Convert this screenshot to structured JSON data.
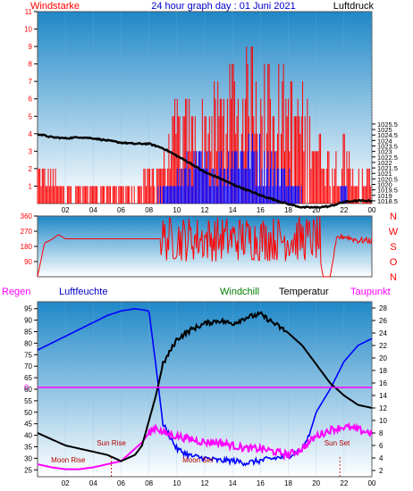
{
  "colors": {
    "wind_speed": "#ff0000",
    "wind_gust": "#0000ff",
    "pressure": "#000000",
    "wind_dir": "#ff0000",
    "humidity": "#0000ff",
    "temperature": "#000000",
    "dewpoint": "#ff00ff",
    "windchill": "#008000",
    "rain": "#ff00ff",
    "annotation": "#b00000",
    "bg_top": "#1f88c8",
    "bg_bottom": "#ffffff"
  },
  "chart_data": [
    {
      "type": "line",
      "title": "24 hour graph day : 01 Juni 2021",
      "left_label": "Windstarke",
      "right_label": "Luftdruck",
      "x_ticks": [
        "02",
        "04",
        "06",
        "08",
        "10",
        "12",
        "14",
        "16",
        "18",
        "20",
        "22",
        "00"
      ],
      "xlim": [
        0,
        24
      ],
      "ylim_left": [
        0,
        11
      ],
      "y_ticks_left": [
        "1",
        "2",
        "3",
        "4",
        "5",
        "6",
        "7",
        "8",
        "9",
        "10",
        "11"
      ],
      "ylim_right": [
        1018.25,
        1035.75
      ],
      "y_ticks_right": [
        "1018.5",
        "1019",
        "1019.5",
        "1020",
        "1020.5",
        "1021",
        "1021.5",
        "1022",
        "1022.5",
        "1023",
        "1023.5",
        "1024",
        "1024.5",
        "1025",
        "1025.5"
      ],
      "pressure_series": {
        "name": "Luftdruck",
        "x": [
          0,
          1,
          2,
          3,
          4,
          5,
          6,
          7,
          8,
          9,
          10,
          11,
          12,
          13,
          14,
          15,
          16,
          17,
          18,
          19,
          20,
          21,
          22,
          23,
          24
        ],
        "y": [
          1024.6,
          1024.3,
          1024.2,
          1024.3,
          1024.2,
          1024.0,
          1023.8,
          1023.7,
          1023.7,
          1023.3,
          1022.6,
          1021.9,
          1021.1,
          1020.6,
          1020.0,
          1019.5,
          1019.0,
          1018.6,
          1018.2,
          1017.9,
          1017.9,
          1018.0,
          1018.4,
          1018.5,
          1018.5
        ]
      },
      "wind_speed_envelope": {
        "name": "Windstarke",
        "x": [
          0,
          1,
          2,
          3,
          4,
          5,
          6,
          7,
          7.5,
          8,
          9,
          10,
          11,
          12,
          13,
          14,
          15,
          16,
          17,
          18,
          19,
          20,
          21,
          22,
          23,
          24
        ],
        "y": [
          2,
          2,
          1,
          1,
          1,
          1,
          1,
          1,
          2,
          2,
          3,
          6,
          6,
          6,
          7,
          9,
          9,
          11,
          9,
          8,
          7,
          5,
          3,
          4,
          2,
          2
        ]
      },
      "wind_gust_envelope": {
        "x": [
          0,
          8,
          9,
          10,
          11,
          12,
          13,
          14,
          15,
          16,
          17,
          18,
          19,
          20,
          21,
          22,
          23,
          24
        ],
        "y": [
          0,
          0,
          1,
          2,
          3,
          3,
          3,
          4,
          4,
          4,
          3,
          2,
          1,
          0,
          0,
          1,
          0,
          0
        ]
      }
    },
    {
      "type": "line",
      "title": "",
      "y_ticks_left": [
        "90",
        "180",
        "270",
        "360"
      ],
      "ylim": [
        0,
        360
      ],
      "right_letters": [
        "N",
        "W",
        "S",
        "O",
        "N"
      ],
      "wind_direction_series": {
        "x": [
          0,
          0.5,
          1,
          1.5,
          2,
          3,
          4,
          5,
          6,
          7,
          8,
          8.8,
          9,
          10,
          11,
          12,
          13,
          14,
          15,
          16,
          17,
          18,
          19,
          20,
          20.5,
          21,
          21.5,
          22,
          23,
          24
        ],
        "y": [
          0,
          200,
          220,
          250,
          225,
          225,
          225,
          225,
          225,
          225,
          225,
          225,
          180,
          270,
          250,
          200,
          230,
          240,
          210,
          260,
          220,
          200,
          230,
          240,
          0,
          0,
          230,
          240,
          215,
          215
        ]
      }
    },
    {
      "type": "line",
      "title": "",
      "labels": {
        "rain": "Regen",
        "humidity": "Luftfeuchte",
        "windchill": "Windchill",
        "temperature": "Temperatur",
        "dewpoint": "Taupunkt"
      },
      "rain_value": "0",
      "y_ticks_left": [
        "25",
        "30",
        "35",
        "40",
        "45",
        "50",
        "55",
        "60",
        "65",
        "70",
        "75",
        "80",
        "85",
        "90",
        "95"
      ],
      "ylim_left": [
        22,
        98
      ],
      "y_ticks_right": [
        "2",
        "4",
        "6",
        "8",
        "10",
        "12",
        "14",
        "16",
        "18",
        "20",
        "22",
        "24",
        "26",
        "28"
      ],
      "ylim_right": [
        1,
        29
      ],
      "annotations": [
        {
          "text": "Moon Rise",
          "x": 2.2
        },
        {
          "text": "Sun Rise",
          "x": 5.3
        },
        {
          "text": "Moon Set",
          "x": 11.5
        },
        {
          "text": "Sun Set",
          "x": 21.5
        }
      ],
      "humidity_series": {
        "name": "Luftfeuchte",
        "x": [
          0,
          1,
          2,
          3,
          4,
          5,
          6,
          7,
          8,
          8.5,
          9,
          10,
          11,
          12,
          13,
          14,
          15,
          16,
          17,
          18,
          19,
          19.5,
          20,
          21,
          22,
          23,
          24
        ],
        "y": [
          77,
          80,
          83,
          86,
          89,
          92,
          94,
          95,
          94,
          70,
          45,
          34,
          31,
          30,
          29,
          29,
          28,
          29,
          30,
          31,
          34,
          40,
          50,
          60,
          72,
          79,
          82
        ]
      },
      "temperature_series": {
        "name": "Temperatur",
        "x": [
          0,
          1,
          2,
          3,
          4,
          5,
          6,
          7,
          7.5,
          8,
          8.5,
          9,
          10,
          11,
          12,
          13,
          14,
          15,
          16,
          17,
          18,
          19,
          20,
          21,
          22,
          23,
          24
        ],
        "y": [
          8,
          7,
          6,
          5.5,
          5,
          4.5,
          3.5,
          4.5,
          6,
          10,
          14,
          19,
          23,
          24.5,
          25.5,
          26,
          25.5,
          26.5,
          27,
          25.5,
          24,
          22,
          19,
          16,
          14,
          12.5,
          12
        ]
      },
      "dewpoint_series": {
        "name": "Taupunkt",
        "x": [
          0,
          1,
          2,
          3,
          4,
          5,
          6,
          7,
          7.5,
          8,
          8.5,
          9,
          10,
          11,
          12,
          13,
          14,
          15,
          16,
          17,
          18,
          19,
          20,
          21,
          22,
          23,
          24
        ],
        "y": [
          3,
          2.5,
          2.2,
          2.2,
          2.5,
          3,
          3.5,
          5.5,
          6.5,
          8,
          9,
          8,
          7.5,
          7,
          6.5,
          6.5,
          6,
          5.5,
          5.5,
          5,
          4.5,
          5.5,
          7.5,
          8.5,
          9,
          8.5,
          8
        ]
      }
    }
  ]
}
